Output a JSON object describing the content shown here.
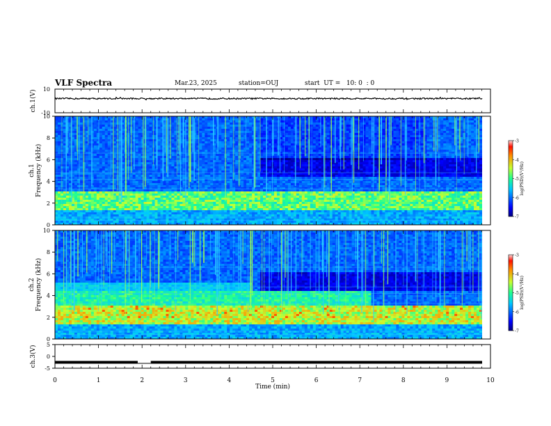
{
  "header": {
    "title": "VLF Spectra",
    "date": "Mar.23, 2025",
    "station": "station=OUJ",
    "start": "start  UT =   10: 0  : 0"
  },
  "chart_data": [
    {
      "type": "line",
      "panel": "ch1-waveform",
      "ylabel": "ch.1(V)",
      "ylim": [
        -10,
        10
      ],
      "yticks": [
        "10",
        "-10"
      ],
      "series": [
        {
          "values_approx": "noise centred near 2 V, amplitude about ±0.6 V"
        }
      ]
    },
    {
      "type": "heatmap",
      "panel": "ch1-spectrogram",
      "ylabel": "ch.1\nFrequency (kHz)",
      "ylim": [
        0,
        10
      ],
      "yticks": [
        "0",
        "2",
        "4",
        "6",
        "8",
        "10"
      ],
      "colorbar": {
        "label": "log(PSD)(V²/Hz)",
        "range": [
          -7,
          -3
        ],
        "ticks": [
          "-3",
          "-4",
          "-5",
          "-6",
          "-7"
        ]
      },
      "features": [
        "enhanced emission band 1.5-3 kHz (log PSD about -4.5)",
        "dense vertical impulsive streaks reaching 10 kHz across 0-9.8 min",
        "quieter band 4.5-6 kHz after about 4.7 min"
      ]
    },
    {
      "type": "heatmap",
      "panel": "ch2-spectrogram",
      "ylabel": "ch.2\nFrequency (kHz)",
      "ylim": [
        0,
        10
      ],
      "yticks": [
        "0",
        "2",
        "4",
        "6",
        "8",
        "10"
      ],
      "colorbar": {
        "label": "log(PSD)(V²/Hz)",
        "range": [
          -7,
          -3
        ],
        "ticks": [
          "-3",
          "-4",
          "-5",
          "-6",
          "-7"
        ]
      },
      "features": [
        "strong emission 1.5-3 kHz with red bursts",
        "hiss band 3-4.5 kHz before about 7 min",
        "impulsive streaks to 10 kHz"
      ]
    },
    {
      "type": "line",
      "panel": "ch3-waveform",
      "ylabel": "ch.3(V)",
      "ylim": [
        -5,
        5
      ],
      "yticks": [
        "5",
        "0",
        "-5"
      ],
      "series": [
        {
          "values_approx": "flat at about -2.5 V, short gap near 1.9-2.2 min"
        }
      ]
    }
  ],
  "xaxis": {
    "label": "Time (min)",
    "xlim": [
      0,
      10
    ],
    "ticks": [
      "0",
      "1",
      "2",
      "3",
      "4",
      "5",
      "6",
      "7",
      "8",
      "9",
      "10"
    ]
  }
}
